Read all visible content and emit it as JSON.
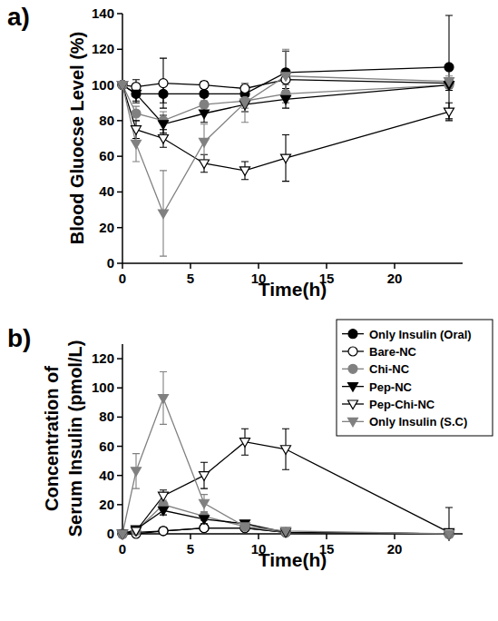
{
  "chart_data": [
    {
      "type": "line",
      "title": "a)",
      "x_label": "Time(h)",
      "y_label": "Blood Gluocse Level (%)",
      "x": [
        0,
        1,
        3,
        6,
        9,
        12,
        24
      ],
      "xlim": [
        0,
        25
      ],
      "xticks": [
        0,
        5,
        10,
        15,
        20
      ],
      "ylim": [
        0,
        140
      ],
      "yticks": [
        0,
        20,
        40,
        60,
        80,
        100,
        120,
        140
      ],
      "grid": false,
      "series": [
        {
          "color": "#000000",
          "marker": "circle",
          "values": [
            100,
            95,
            95,
            95,
            95,
            107,
            110
          ],
          "errors": [
            0,
            5,
            5,
            4,
            3,
            12,
            29
          ]
        },
        {
          "color": "#000000",
          "marker": "open-circle",
          "values": [
            100,
            99,
            101,
            100,
            98,
            103,
            101
          ],
          "errors": [
            0,
            4,
            14,
            2,
            3,
            5,
            3
          ]
        },
        {
          "color": "#808080",
          "marker": "circle",
          "values": [
            100,
            84,
            80,
            89,
            91,
            95,
            100
          ],
          "errors": [
            0,
            4,
            5,
            4,
            4,
            5,
            3
          ]
        },
        {
          "color": "#000000",
          "marker": "triangle-down",
          "values": [
            100,
            95,
            78,
            84,
            89,
            92,
            100
          ],
          "errors": [
            0,
            4,
            5,
            5,
            4,
            5,
            3
          ]
        },
        {
          "color": "#000000",
          "marker": "open-triangle-down",
          "values": [
            100,
            75,
            70,
            56,
            52,
            59,
            85
          ],
          "errors": [
            0,
            5,
            5,
            5,
            5,
            13,
            5
          ]
        },
        {
          "color": "#808080",
          "marker": "triangle-down",
          "values": [
            100,
            67,
            28,
            68,
            90,
            105,
            102
          ],
          "errors": [
            0,
            10,
            24,
            10,
            11,
            15,
            3
          ]
        }
      ]
    },
    {
      "type": "line",
      "title": "b)",
      "x_label": "Time(h)",
      "y_label": "Concentration of\nSerum Insulin (pmol/L)",
      "x": [
        0,
        1,
        3,
        6,
        9,
        12,
        24
      ],
      "xlim": [
        0,
        25
      ],
      "xticks": [
        0,
        5,
        10,
        15,
        20
      ],
      "ylim": [
        0,
        130
      ],
      "yticks": [
        0,
        20,
        40,
        60,
        80,
        100,
        120
      ],
      "grid": false,
      "legend": "upper right",
      "series": [
        {
          "name": "Only Insulin (Oral)",
          "color": "#000000",
          "marker": "circle",
          "values": [
            0,
            1,
            2,
            4,
            4,
            1,
            0
          ],
          "errors": [
            0,
            1,
            1,
            1,
            1,
            1,
            0
          ]
        },
        {
          "name": "Bare-NC",
          "color": "#000000",
          "marker": "open-circle",
          "values": [
            0,
            0,
            2,
            4,
            4,
            1,
            0
          ],
          "errors": [
            0,
            0,
            2,
            1,
            1,
            0,
            0
          ]
        },
        {
          "name": "Chi-NC",
          "color": "#808080",
          "marker": "circle",
          "values": [
            0,
            2,
            20,
            12,
            5,
            1,
            0
          ],
          "errors": [
            0,
            1,
            3,
            3,
            2,
            1,
            0
          ]
        },
        {
          "name": "Pep-NC",
          "color": "#000000",
          "marker": "triangle-down",
          "values": [
            0,
            3,
            16,
            10,
            7,
            1,
            0
          ],
          "errors": [
            0,
            1,
            3,
            3,
            2,
            1,
            0
          ]
        },
        {
          "name": "Pep-Chi-NC",
          "color": "#000000",
          "marker": "open-triangle-down",
          "values": [
            0,
            2,
            26,
            40,
            63,
            58,
            1
          ],
          "errors": [
            0,
            1,
            4,
            9,
            9,
            14,
            17
          ]
        },
        {
          "name": "Only Insulin (S.C)",
          "color": "#808080",
          "marker": "triangle-down",
          "values": [
            0,
            43,
            93,
            21,
            5,
            2,
            0
          ],
          "errors": [
            0,
            12,
            18,
            6,
            2,
            1,
            0
          ]
        }
      ]
    }
  ]
}
